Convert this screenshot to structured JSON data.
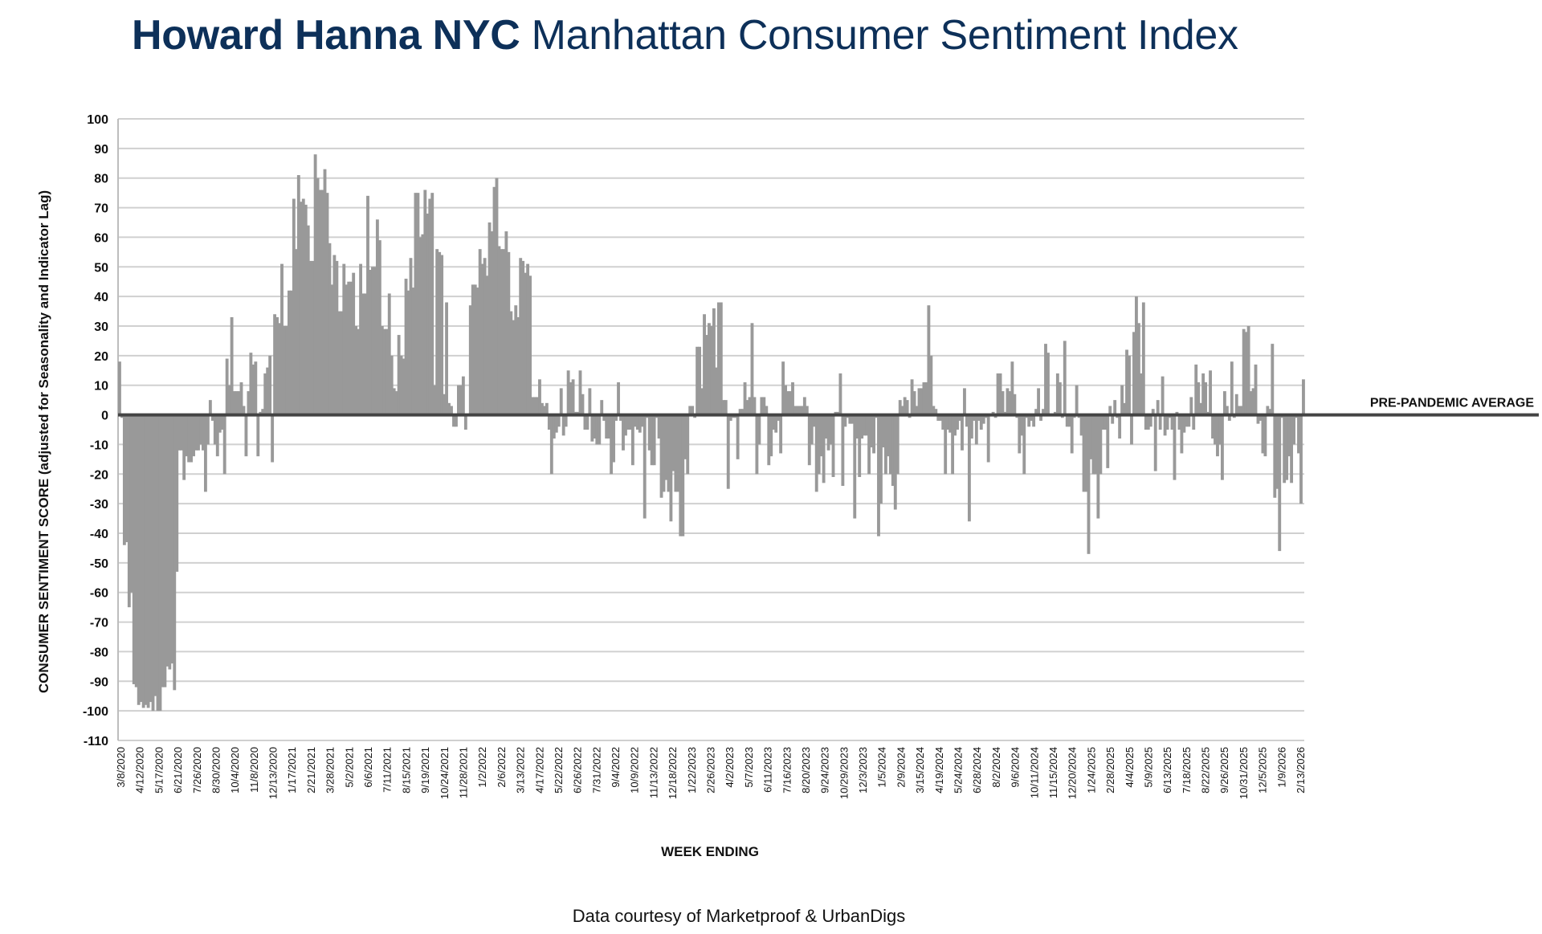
{
  "header": {
    "brand": "Howard Hanna NYC",
    "subtitle": "Manhattan Consumer Sentiment Index"
  },
  "footer": {
    "source": "Data courtesy of Marketproof & UrbanDigs"
  },
  "chart_data": {
    "type": "bar",
    "title": "Howard Hanna NYC Manhattan Consumer Sentiment Index",
    "xlabel": "WEEK ENDING",
    "ylabel": "CONSUMER SENTIMENT SCORE (adjusted for Seasonality and Indicator Lag)",
    "ylim": [
      -110,
      100
    ],
    "yticks": [
      100,
      90,
      80,
      70,
      60,
      50,
      40,
      30,
      20,
      10,
      0,
      -10,
      -20,
      -30,
      -40,
      -50,
      -60,
      -70,
      -80,
      -90,
      -100,
      -110
    ],
    "grid": true,
    "bar_color": "#999999",
    "reference_line": {
      "value": 0,
      "label": "PRE-PANDEMIC AVERAGE"
    },
    "x_start": "3/8/2020",
    "x_end": "2/13/2026",
    "x_tick_labels": [
      "3/8/2020",
      "4/12/2020",
      "5/17/2020",
      "6/21/2020",
      "7/26/2020",
      "8/30/2020",
      "10/4/2020",
      "11/8/2020",
      "12/13/2020",
      "1/17/2021",
      "2/21/2021",
      "3/28/2021",
      "5/2/2021",
      "6/6/2021",
      "7/11/2021",
      "8/15/2021",
      "9/19/2021",
      "10/24/2021",
      "11/28/2021",
      "1/2/2022",
      "2/6/2022",
      "3/13/2022",
      "4/17/2022",
      "5/22/2022",
      "6/26/2022",
      "7/31/2022",
      "9/4/2022",
      "10/9/2022",
      "11/13/2022",
      "12/18/2022",
      "1/22/2023",
      "2/26/2023",
      "4/2/2023",
      "5/7/2023",
      "6/11/2023",
      "7/16/2023",
      "8/20/2023",
      "9/24/2023",
      "10/29/2023",
      "12/3/2023",
      "1/5/2024",
      "2/9/2024",
      "3/15/2024",
      "4/19/2024",
      "5/24/2024",
      "6/28/2024",
      "8/2/2024",
      "9/6/2024",
      "10/11/2024",
      "11/15/2024",
      "12/20/2024",
      "1/24/2025",
      "2/28/2025",
      "4/4/2025",
      "5/9/2025",
      "6/13/2025",
      "7/18/2025",
      "8/22/2025",
      "9/26/2025",
      "10/31/2025",
      "12/5/2025",
      "1/9/2026",
      "2/13/2026"
    ],
    "values": [
      18,
      -1,
      -44,
      -43,
      -65,
      -60,
      -91,
      -92,
      -98,
      -97,
      -99,
      -98,
      -99,
      -97,
      -100,
      -95,
      -100,
      -100,
      -92,
      -92,
      -85,
      -86,
      -84,
      -93,
      -53,
      -12,
      -12,
      -22,
      -14,
      -16,
      -16,
      -14,
      -12,
      -12,
      -10,
      -12,
      -26,
      -10,
      5,
      -2,
      -10,
      -14,
      -6,
      -5,
      -20,
      19,
      10,
      33,
      8,
      8,
      8,
      11,
      3,
      -14,
      8,
      21,
      17,
      18,
      -14,
      1,
      2,
      14,
      16,
      20,
      -16,
      34,
      33,
      31,
      51,
      30,
      30,
      42,
      42,
      73,
      56,
      81,
      72,
      73,
      71,
      64,
      52,
      52,
      88,
      80,
      76,
      76,
      83,
      75,
      58,
      44,
      54,
      52,
      35,
      35,
      51,
      44,
      45,
      45,
      48,
      30,
      29,
      51,
      41,
      41,
      74,
      49,
      50,
      50,
      66,
      59,
      30,
      29,
      29,
      41,
      20,
      9,
      8,
      27,
      20,
      19,
      46,
      42,
      53,
      43,
      75,
      75,
      60,
      61,
      76,
      68,
      73,
      75,
      10,
      56,
      55,
      54,
      7,
      38,
      4,
      3,
      -4,
      -4,
      10,
      10,
      13,
      -5,
      0,
      37,
      44,
      44,
      43,
      56,
      51,
      53,
      47,
      65,
      62,
      77,
      80,
      57,
      56,
      56,
      62,
      55,
      35,
      32,
      37,
      33,
      53,
      52,
      48,
      51,
      47,
      6,
      6,
      6,
      12,
      4,
      3,
      4,
      -5,
      -20,
      -8,
      -6,
      -4,
      9,
      -7,
      -4,
      15,
      11,
      12,
      1,
      1,
      15,
      7,
      -5,
      -5,
      9,
      -9,
      -8,
      -10,
      -10,
      5,
      -2,
      -8,
      -8,
      -20,
      -16,
      -2,
      11,
      -2,
      -12,
      -7,
      -5,
      -5,
      -17,
      -4,
      -5,
      -6,
      -4,
      -35,
      -1,
      -12,
      -17,
      -17,
      -1,
      -8,
      -28,
      -26,
      -22,
      -26,
      -36,
      -19,
      -26,
      -26,
      -41,
      -41,
      -15,
      -20,
      3,
      3,
      -1,
      23,
      23,
      9,
      34,
      27,
      31,
      30,
      36,
      16,
      38,
      38,
      5,
      5,
      -25,
      -2,
      -1,
      -1,
      -15,
      2,
      2,
      11,
      5,
      6,
      31,
      6,
      -20,
      -10,
      6,
      6,
      3,
      -17,
      -14,
      -5,
      -6,
      -2,
      -13,
      18,
      10,
      8,
      8,
      11,
      3,
      3,
      3,
      3,
      6,
      3,
      -17,
      -10,
      -4,
      -26,
      -20,
      -14,
      -23,
      -8,
      -12,
      -10,
      -21,
      1,
      1,
      14,
      -24,
      -4,
      -1,
      -3,
      -3,
      -35,
      -8,
      -21,
      -8,
      -7,
      -7,
      -20,
      -11,
      -13,
      -1,
      -41,
      -30,
      -11,
      -20,
      -14,
      -20,
      -24,
      -32,
      -20,
      5,
      3,
      6,
      5,
      -1,
      12,
      8,
      3,
      9,
      9,
      11,
      11,
      37,
      20,
      3,
      2,
      -2,
      -2,
      -5,
      -20,
      -5,
      -6,
      -20,
      -7,
      -5,
      -2,
      -12,
      9,
      -4,
      -36,
      -8,
      -2,
      -10,
      -2,
      -5,
      -3,
      -1,
      -16,
      0,
      1,
      -1,
      14,
      14,
      8,
      1,
      9,
      8,
      18,
      7,
      -1,
      -13,
      -7,
      -20,
      -1,
      -4,
      -2,
      -4,
      2,
      9,
      -2,
      2,
      24,
      21,
      0,
      0,
      1,
      14,
      11,
      -1,
      25,
      -4,
      -4,
      -13,
      -1,
      10,
      -1,
      -7,
      -26,
      -26,
      -47,
      -15,
      -20,
      -20,
      -35,
      -20,
      -5,
      -5,
      -18,
      3,
      -3,
      5,
      -1,
      -8,
      10,
      4,
      22,
      20,
      -10,
      28,
      40,
      31,
      14,
      38,
      -5,
      -5,
      -4,
      2,
      -19,
      5,
      -5,
      13,
      -7,
      -5,
      -1,
      -5,
      -22,
      1,
      -5,
      -13,
      -6,
      -4,
      -4,
      6,
      -5,
      17,
      11,
      4,
      14,
      11,
      1,
      15,
      -8,
      -10,
      -14,
      -10,
      -22,
      8,
      3,
      -2,
      18,
      -1,
      7,
      3,
      3,
      29,
      28,
      30,
      8,
      9,
      17,
      -3,
      -2,
      -13,
      -14,
      3,
      2,
      24,
      -28,
      -25,
      -46,
      -1,
      -23,
      -22,
      -14,
      -23,
      -10,
      -1,
      -13,
      -30,
      12
    ]
  }
}
